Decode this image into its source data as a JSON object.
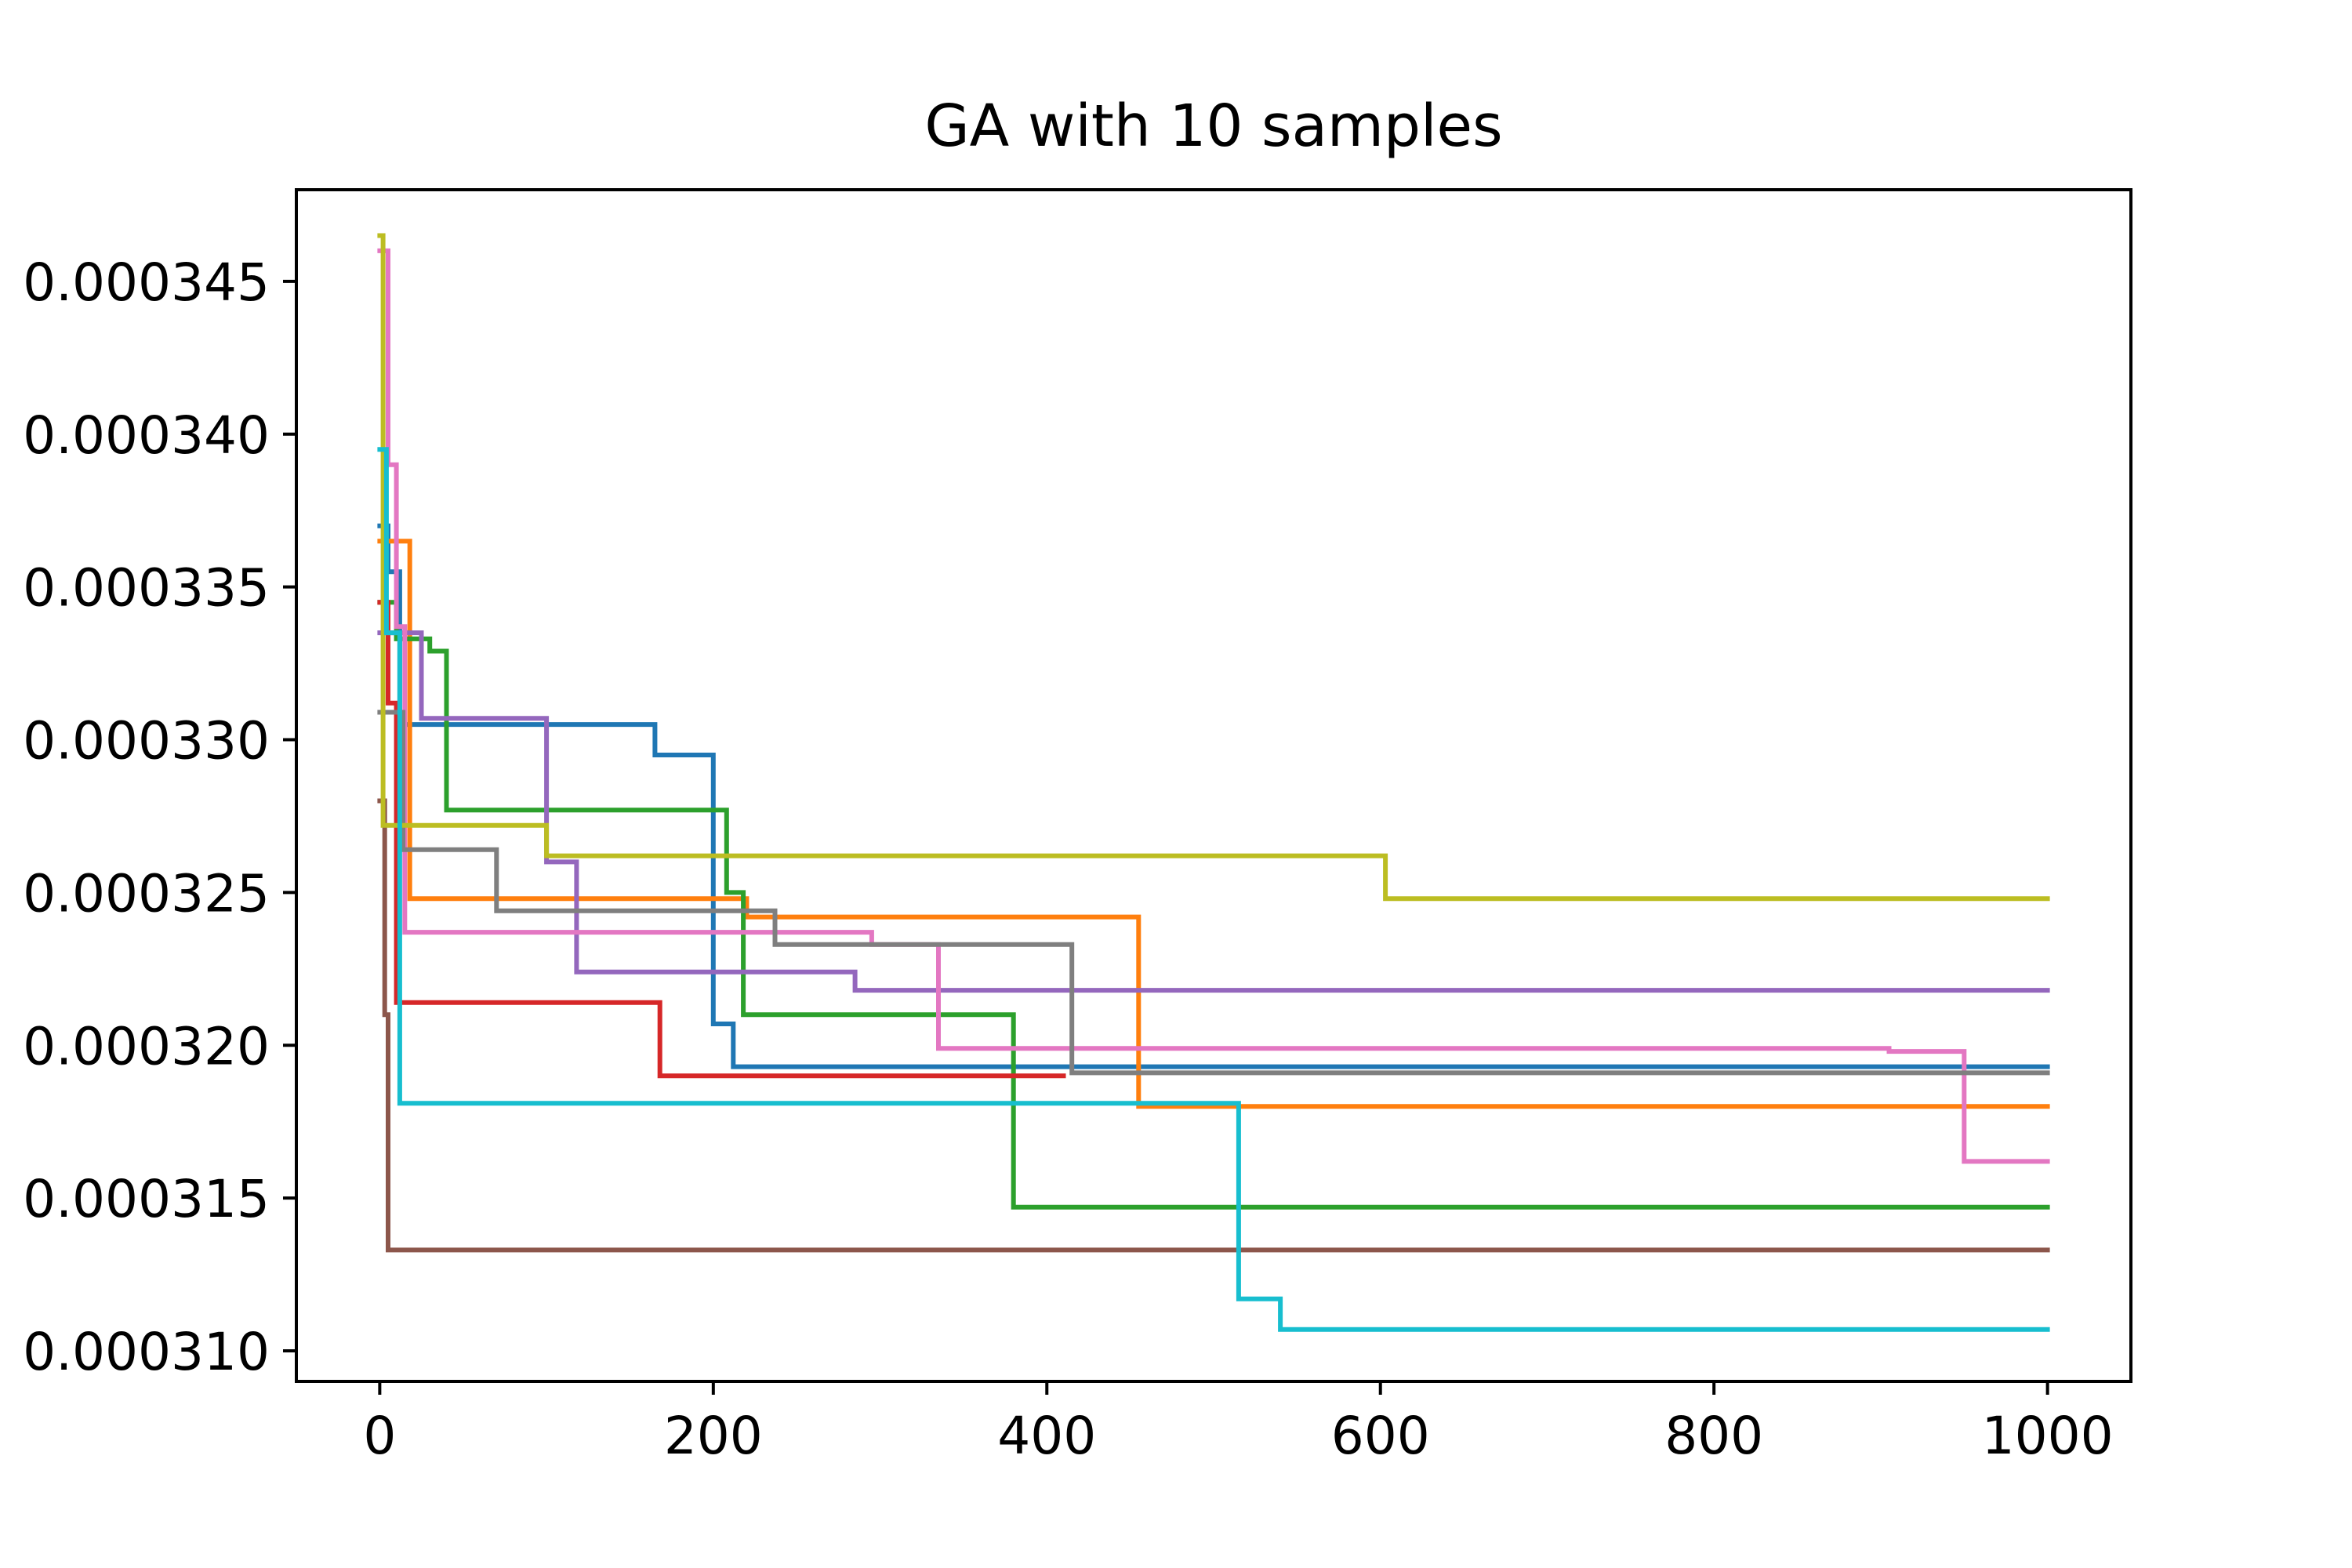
{
  "chart_data": {
    "type": "line",
    "title": "GA with 10 samples",
    "xlabel": "",
    "ylabel": "",
    "xlim": [
      -50,
      1050
    ],
    "ylim": [
      0.000309,
      0.000348
    ],
    "grid": false,
    "x_ticks": [
      0,
      200,
      400,
      600,
      800,
      1000
    ],
    "x_tick_labels": [
      "0",
      "200",
      "400",
      "600",
      "800",
      "1000"
    ],
    "y_ticks": [
      0.00031,
      0.000315,
      0.00032,
      0.000325,
      0.00033,
      0.000335,
      0.00034,
      0.000345
    ],
    "y_tick_labels": [
      "0.000310",
      "0.000315",
      "0.000320",
      "0.000325",
      "0.000330",
      "0.000335",
      "0.000340",
      "0.000345"
    ],
    "series": [
      {
        "color": "#1f77b4",
        "points": [
          [
            0,
            0.000337
          ],
          [
            5,
            0.000337
          ],
          [
            5,
            0.0003355
          ],
          [
            12,
            0.0003355
          ],
          [
            12,
            0.0003305
          ],
          [
            165,
            0.0003305
          ],
          [
            165,
            0.0003295
          ],
          [
            200,
            0.0003295
          ],
          [
            200,
            0.0003207
          ],
          [
            212,
            0.0003207
          ],
          [
            212,
            0.0003193
          ],
          [
            1000,
            0.0003193
          ]
        ]
      },
      {
        "color": "#ff7f0e",
        "points": [
          [
            0,
            0.0003365
          ],
          [
            18,
            0.0003365
          ],
          [
            18,
            0.0003248
          ],
          [
            220,
            0.0003248
          ],
          [
            220,
            0.0003242
          ],
          [
            455,
            0.0003242
          ],
          [
            455,
            0.000318
          ],
          [
            1000,
            0.000318
          ]
        ]
      },
      {
        "color": "#2ca02c",
        "points": [
          [
            0,
            0.0003345
          ],
          [
            10,
            0.0003345
          ],
          [
            10,
            0.0003333
          ],
          [
            30,
            0.0003333
          ],
          [
            30,
            0.0003329
          ],
          [
            40,
            0.0003329
          ],
          [
            40,
            0.0003277
          ],
          [
            208,
            0.0003277
          ],
          [
            208,
            0.000325
          ],
          [
            218,
            0.000325
          ],
          [
            218,
            0.000321
          ],
          [
            380,
            0.000321
          ],
          [
            380,
            0.0003147
          ],
          [
            1000,
            0.0003147
          ]
        ]
      },
      {
        "color": "#d62728",
        "points": [
          [
            0,
            0.0003345
          ],
          [
            5,
            0.0003345
          ],
          [
            5,
            0.0003312
          ],
          [
            10,
            0.0003312
          ],
          [
            10,
            0.0003214
          ],
          [
            168,
            0.0003214
          ],
          [
            168,
            0.000319
          ],
          [
            410,
            0.000319
          ]
        ]
      },
      {
        "color": "#9467bd",
        "points": [
          [
            0,
            0.0003335
          ],
          [
            25,
            0.0003335
          ],
          [
            25,
            0.0003307
          ],
          [
            100,
            0.0003307
          ],
          [
            100,
            0.000326
          ],
          [
            118,
            0.000326
          ],
          [
            118,
            0.0003224
          ],
          [
            285,
            0.0003224
          ],
          [
            285,
            0.0003218
          ],
          [
            1000,
            0.0003218
          ]
        ]
      },
      {
        "color": "#8c564b",
        "points": [
          [
            0,
            0.000328
          ],
          [
            3,
            0.000328
          ],
          [
            3,
            0.000321
          ],
          [
            5,
            0.000321
          ],
          [
            5,
            0.0003133
          ],
          [
            1000,
            0.0003133
          ]
        ]
      },
      {
        "color": "#e377c2",
        "points": [
          [
            0,
            0.000346
          ],
          [
            5,
            0.000346
          ],
          [
            5,
            0.000339
          ],
          [
            10,
            0.000339
          ],
          [
            10,
            0.0003337
          ],
          [
            15,
            0.0003337
          ],
          [
            15,
            0.0003237
          ],
          [
            295,
            0.0003237
          ],
          [
            295,
            0.0003233
          ],
          [
            335,
            0.0003233
          ],
          [
            335,
            0.0003199
          ],
          [
            905,
            0.0003199
          ],
          [
            905,
            0.0003198
          ],
          [
            950,
            0.0003198
          ],
          [
            950,
            0.0003162
          ],
          [
            1000,
            0.0003162
          ]
        ]
      },
      {
        "color": "#7f7f7f",
        "points": [
          [
            0,
            0.0003309
          ],
          [
            14,
            0.0003309
          ],
          [
            14,
            0.0003264
          ],
          [
            70,
            0.0003264
          ],
          [
            70,
            0.0003244
          ],
          [
            237,
            0.0003244
          ],
          [
            237,
            0.0003233
          ],
          [
            415,
            0.0003233
          ],
          [
            415,
            0.0003191
          ],
          [
            1000,
            0.0003191
          ]
        ]
      },
      {
        "color": "#bcbd22",
        "points": [
          [
            0,
            0.0003465
          ],
          [
            2,
            0.0003465
          ],
          [
            2,
            0.0003272
          ],
          [
            100,
            0.0003272
          ],
          [
            100,
            0.0003262
          ],
          [
            603,
            0.0003262
          ],
          [
            603,
            0.0003248
          ],
          [
            1000,
            0.0003248
          ]
        ]
      },
      {
        "color": "#17becf",
        "points": [
          [
            0,
            0.0003395
          ],
          [
            4,
            0.0003395
          ],
          [
            4,
            0.0003335
          ],
          [
            12,
            0.0003335
          ],
          [
            12,
            0.0003181
          ],
          [
            515,
            0.0003181
          ],
          [
            515,
            0.0003117
          ],
          [
            540,
            0.0003117
          ],
          [
            540,
            0.0003107
          ],
          [
            1000,
            0.0003107
          ]
        ]
      }
    ]
  }
}
